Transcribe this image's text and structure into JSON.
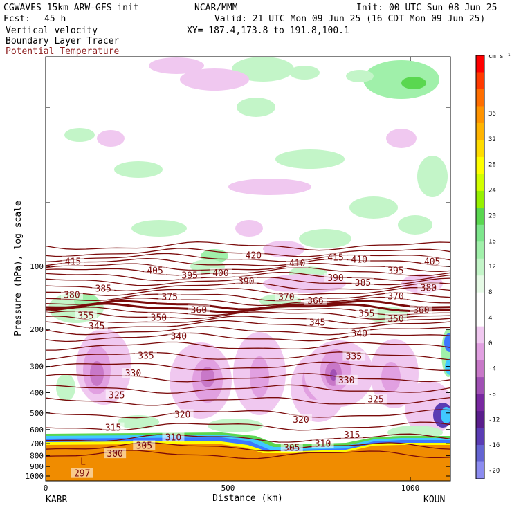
{
  "header": {
    "model": "CGWAVES 15km ARW-GFS init",
    "fcst_label": "Fcst:",
    "fcst_value": "45 h",
    "center": "NCAR/MMM",
    "init": "Init: 00 UTC Sun 08 Jun 25",
    "valid": "Valid: 21 UTC Mon 09 Jun 25 (16 CDT Mon 09 Jun 25)",
    "xy": "XY= 187.4,173.8 to 191.8,100.1",
    "field1": "Vertical velocity",
    "field2": "Boundary Layer Tracer",
    "field3": "Potential Temperature"
  },
  "colors": {
    "contour": "#7a0a0a",
    "field3_text": "#8b1a1a",
    "plume": "#f08c00"
  },
  "chart_data": {
    "type": "heatmap",
    "title": "",
    "xlabel": "Distance (km)",
    "ylabel": "Pressure (hPa), log scale",
    "x_ticks": [
      0,
      500,
      1000
    ],
    "x_range": [
      0,
      1110
    ],
    "y_ticks": [
      100,
      200,
      300,
      400,
      500,
      600,
      700,
      800,
      900,
      1000
    ],
    "y_scale": "log",
    "left_station": "KABR",
    "right_station": "KOUN",
    "colorbar": {
      "unit": "cm s⁻¹",
      "ticks": [
        "36",
        "32",
        "28",
        "24",
        "20",
        "16",
        "12",
        "8",
        "4",
        "0",
        "-4",
        "-8",
        "-12",
        "-16",
        "-20"
      ],
      "colors": [
        "#ff0000",
        "#ff3a00",
        "#ff6e00",
        "#ff9400",
        "#ffb400",
        "#ffdc00",
        "#ffff00",
        "#d2ff00",
        "#96f000",
        "#5ad750",
        "#7de68c",
        "#a0f0aa",
        "#c3f5c8",
        "#e6fae6",
        "#ffffff",
        "#ffffff",
        "#f0c8f0",
        "#e1a0e1",
        "#c878c8",
        "#a050b4",
        "#7828a0",
        "#5a1e8c",
        "#5a3cb4",
        "#6464d2",
        "#8c8cf0"
      ]
    },
    "isentrope_labels": [
      {
        "value": "415",
        "x": 75,
        "p": 95
      },
      {
        "value": "405",
        "x": 300,
        "p": 105
      },
      {
        "value": "420",
        "x": 570,
        "p": 89
      },
      {
        "value": "410",
        "x": 690,
        "p": 97
      },
      {
        "value": "415",
        "x": 795,
        "p": 91
      },
      {
        "value": "410",
        "x": 860,
        "p": 93
      },
      {
        "value": "405",
        "x": 1060,
        "p": 95
      },
      {
        "value": "395",
        "x": 395,
        "p": 111
      },
      {
        "value": "400",
        "x": 480,
        "p": 108
      },
      {
        "value": "390",
        "x": 550,
        "p": 118
      },
      {
        "value": "390",
        "x": 795,
        "p": 114
      },
      {
        "value": "395",
        "x": 960,
        "p": 105
      },
      {
        "value": "385",
        "x": 158,
        "p": 128
      },
      {
        "value": "385",
        "x": 870,
        "p": 120
      },
      {
        "value": "380",
        "x": 72,
        "p": 137
      },
      {
        "value": "380",
        "x": 1050,
        "p": 127
      },
      {
        "value": "375",
        "x": 340,
        "p": 140
      },
      {
        "value": "370",
        "x": 660,
        "p": 140
      },
      {
        "value": "370",
        "x": 960,
        "p": 139
      },
      {
        "value": "366",
        "x": 740,
        "p": 146
      },
      {
        "value": "360",
        "x": 420,
        "p": 162
      },
      {
        "value": "360",
        "x": 1030,
        "p": 162
      },
      {
        "value": "355",
        "x": 110,
        "p": 172
      },
      {
        "value": "355",
        "x": 880,
        "p": 168
      },
      {
        "value": "350",
        "x": 310,
        "p": 176
      },
      {
        "value": "350",
        "x": 960,
        "p": 178
      },
      {
        "value": "345",
        "x": 140,
        "p": 194
      },
      {
        "value": "345",
        "x": 745,
        "p": 186
      },
      {
        "value": "340",
        "x": 365,
        "p": 216
      },
      {
        "value": "340",
        "x": 860,
        "p": 210
      },
      {
        "value": "335",
        "x": 275,
        "p": 268
      },
      {
        "value": "335",
        "x": 845,
        "p": 270
      },
      {
        "value": "330",
        "x": 240,
        "p": 325
      },
      {
        "value": "330",
        "x": 825,
        "p": 350
      },
      {
        "value": "325",
        "x": 195,
        "p": 412
      },
      {
        "value": "325",
        "x": 905,
        "p": 432
      },
      {
        "value": "320",
        "x": 375,
        "p": 510
      },
      {
        "value": "320",
        "x": 700,
        "p": 540
      },
      {
        "value": "315",
        "x": 185,
        "p": 590
      },
      {
        "value": "315",
        "x": 840,
        "p": 638
      },
      {
        "value": "310",
        "x": 350,
        "p": 655
      },
      {
        "value": "310",
        "x": 760,
        "p": 702
      },
      {
        "value": "305",
        "x": 270,
        "p": 718
      },
      {
        "value": "305",
        "x": 675,
        "p": 735
      },
      {
        "value": "300",
        "x": 190,
        "p": 785
      },
      {
        "value": "297",
        "x": 100,
        "p": 975
      }
    ],
    "low_marker": {
      "text": "L",
      "x": 95,
      "p": 882
    }
  }
}
